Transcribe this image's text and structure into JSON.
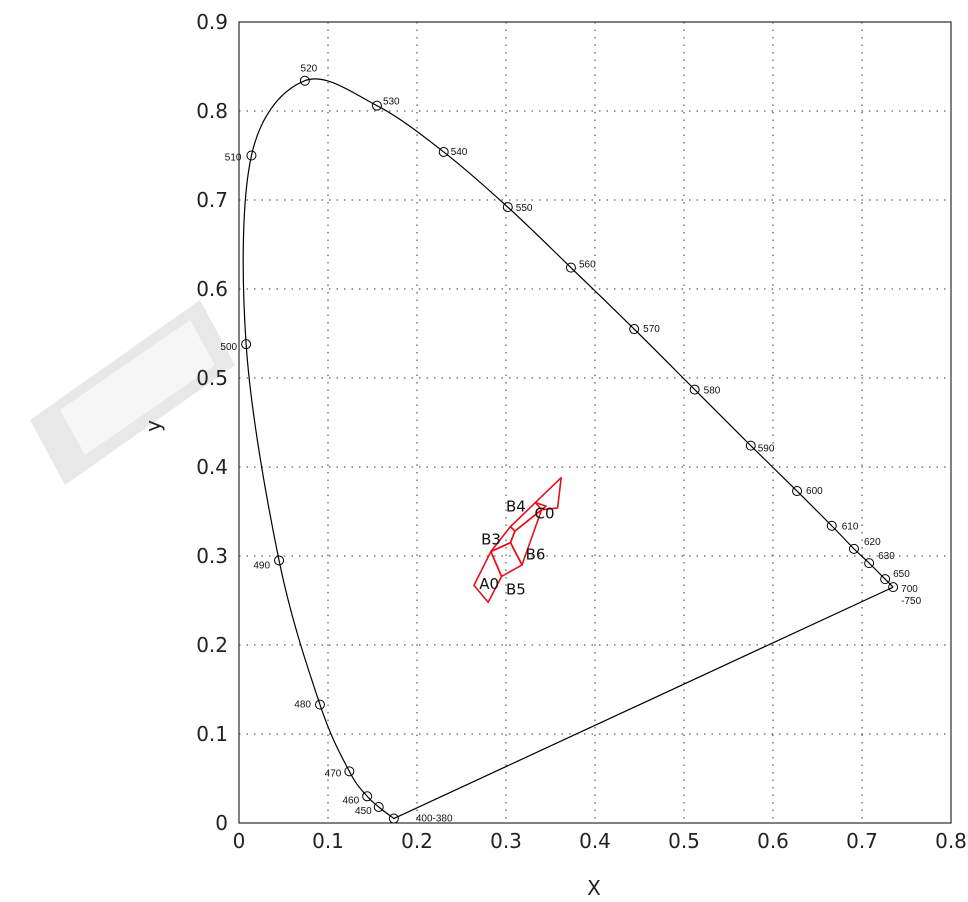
{
  "chart_data": {
    "type": "scatter",
    "title": "",
    "xlabel": "X",
    "ylabel": "y",
    "xlim": [
      0,
      0.8
    ],
    "ylim": [
      0,
      0.9
    ],
    "x_ticks": [
      "0",
      "0.1",
      "0.2",
      "0.3",
      "0.4",
      "0.5",
      "0.6",
      "0.7",
      "0.8"
    ],
    "y_ticks": [
      "0",
      "0.1",
      "0.2",
      "0.3",
      "0.4",
      "0.5",
      "0.6",
      "0.7",
      "0.8",
      "0.9"
    ],
    "grid": true,
    "colors": {
      "locus": "#000000",
      "regions": "#e8101a",
      "watermark": "#e6e6e6"
    },
    "spectral_locus": [
      {
        "label": "400-380",
        "x": 0.174,
        "y": 0.005
      },
      {
        "label": "450",
        "x": 0.157,
        "y": 0.018
      },
      {
        "label": "460",
        "x": 0.144,
        "y": 0.03
      },
      {
        "label": "470",
        "x": 0.124,
        "y": 0.058
      },
      {
        "label": "480",
        "x": 0.091,
        "y": 0.133
      },
      {
        "label": "490",
        "x": 0.045,
        "y": 0.295
      },
      {
        "label": "500",
        "x": 0.008,
        "y": 0.538
      },
      {
        "label": "510",
        "x": 0.014,
        "y": 0.75
      },
      {
        "label": "520",
        "x": 0.074,
        "y": 0.834
      },
      {
        "label": "530",
        "x": 0.155,
        "y": 0.806
      },
      {
        "label": "540",
        "x": 0.23,
        "y": 0.754
      },
      {
        "label": "550",
        "x": 0.302,
        "y": 0.692
      },
      {
        "label": "560",
        "x": 0.373,
        "y": 0.624
      },
      {
        "label": "570",
        "x": 0.444,
        "y": 0.555
      },
      {
        "label": "580",
        "x": 0.512,
        "y": 0.487
      },
      {
        "label": "590",
        "x": 0.575,
        "y": 0.424
      },
      {
        "label": "600",
        "x": 0.627,
        "y": 0.373
      },
      {
        "label": "610",
        "x": 0.666,
        "y": 0.334
      },
      {
        "label": "620",
        "x": 0.691,
        "y": 0.308
      },
      {
        "label": "630",
        "x": 0.708,
        "y": 0.292
      },
      {
        "label": "650",
        "x": 0.726,
        "y": 0.274
      },
      {
        "label": "700\n-750",
        "x": 0.735,
        "y": 0.265
      }
    ],
    "regions": [
      {
        "name": "A0",
        "polygon": [
          [
            0.264,
            0.267
          ],
          [
            0.283,
            0.305
          ],
          [
            0.295,
            0.277
          ],
          [
            0.28,
            0.248
          ]
        ]
      },
      {
        "name": "B5",
        "polygon": [
          [
            0.283,
            0.305
          ],
          [
            0.305,
            0.315
          ],
          [
            0.318,
            0.29
          ],
          [
            0.295,
            0.277
          ]
        ]
      },
      {
        "name": "B3",
        "polygon": [
          [
            0.283,
            0.305
          ],
          [
            0.305,
            0.333
          ],
          [
            0.31,
            0.328
          ],
          [
            0.305,
            0.315
          ]
        ]
      },
      {
        "name": "B6",
        "polygon": [
          [
            0.305,
            0.315
          ],
          [
            0.31,
            0.328
          ],
          [
            0.34,
            0.352
          ],
          [
            0.318,
            0.29
          ]
        ]
      },
      {
        "name": "B4",
        "polygon": [
          [
            0.305,
            0.333
          ],
          [
            0.333,
            0.36
          ],
          [
            0.345,
            0.356
          ],
          [
            0.31,
            0.328
          ]
        ]
      },
      {
        "name": "C0",
        "polygon": [
          [
            0.333,
            0.36
          ],
          [
            0.362,
            0.388
          ],
          [
            0.358,
            0.354
          ],
          [
            0.34,
            0.352
          ]
        ]
      }
    ],
    "region_labels": [
      {
        "text": "A0",
        "x": 0.27,
        "y": 0.263
      },
      {
        "text": "B5",
        "x": 0.3,
        "y": 0.257
      },
      {
        "text": "B3",
        "x": 0.272,
        "y": 0.313
      },
      {
        "text": "B6",
        "x": 0.322,
        "y": 0.296
      },
      {
        "text": "B4",
        "x": 0.3,
        "y": 0.35
      },
      {
        "text": "C0",
        "x": 0.332,
        "y": 0.342
      }
    ]
  }
}
